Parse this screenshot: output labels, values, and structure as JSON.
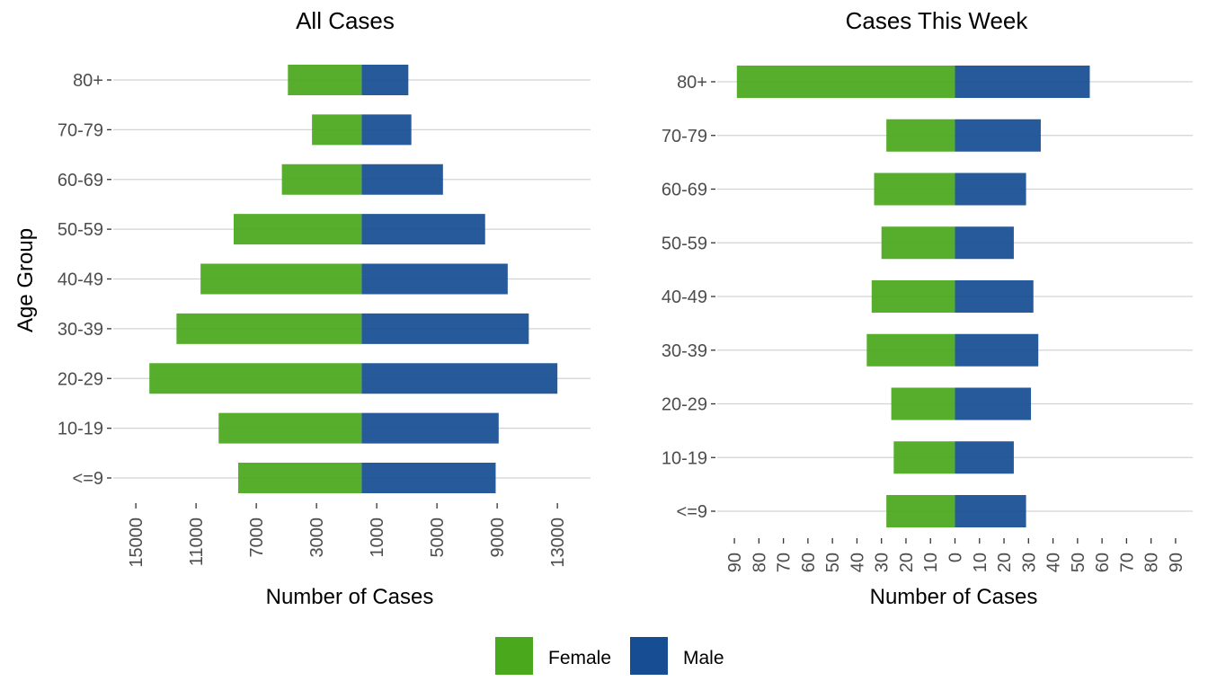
{
  "colors": {
    "female": "#4aa81c",
    "male": "#174d92",
    "grid": "#d3d3d3",
    "tick": "#333333"
  },
  "legend": {
    "entries": [
      {
        "label": "Female",
        "color": "#4aa81c"
      },
      {
        "label": "Male",
        "color": "#174d92"
      }
    ]
  },
  "chart_data": [
    {
      "type": "bar",
      "orientation": "horizontal",
      "title": "All Cases",
      "xlabel": "Number of Cases",
      "ylabel": "Age Group",
      "categories": [
        "<=9",
        "10-19",
        "20-29",
        "30-39",
        "40-49",
        "50-59",
        "60-69",
        "70-79",
        "80+"
      ],
      "x_tick_labels": [
        "15000",
        "11000",
        "7000",
        "3000",
        "1000",
        "5000",
        "9000",
        "13000"
      ],
      "x_tick_values": [
        -15000,
        -11000,
        -7000,
        -3000,
        1000,
        5000,
        9000,
        13000
      ],
      "xlim": [
        -16500,
        15200
      ],
      "grid": "horizontal major lines",
      "series": [
        {
          "name": "Female",
          "values": [
            -8200,
            -9500,
            -14100,
            -12300,
            -10700,
            -8500,
            -5300,
            -3300,
            -4900
          ]
        },
        {
          "name": "Male",
          "values": [
            8900,
            9100,
            13000,
            11100,
            9700,
            8200,
            5400,
            3300,
            3100
          ]
        }
      ]
    },
    {
      "type": "bar",
      "orientation": "horizontal",
      "title": "Cases This Week",
      "xlabel": "Number of Cases",
      "ylabel": "",
      "categories": [
        "<=9",
        "10-19",
        "20-29",
        "30-39",
        "40-49",
        "50-59",
        "60-69",
        "70-79",
        "80+"
      ],
      "x_tick_labels": [
        "90",
        "80",
        "70",
        "60",
        "50",
        "40",
        "30",
        "20",
        "10",
        "0",
        "10",
        "20",
        "30",
        "40",
        "50",
        "60",
        "70",
        "80",
        "90"
      ],
      "x_tick_values": [
        -90,
        -80,
        -70,
        -60,
        -50,
        -40,
        -30,
        -20,
        -10,
        0,
        10,
        20,
        30,
        40,
        50,
        60,
        70,
        80,
        90
      ],
      "xlim": [
        -97,
        97
      ],
      "grid": "horizontal major lines",
      "series": [
        {
          "name": "Female",
          "values": [
            -28,
            -25,
            -26,
            -36,
            -34,
            -30,
            -33,
            -28,
            -89
          ]
        },
        {
          "name": "Male",
          "values": [
            29,
            24,
            31,
            34,
            32,
            24,
            29,
            35,
            55
          ]
        }
      ]
    }
  ]
}
